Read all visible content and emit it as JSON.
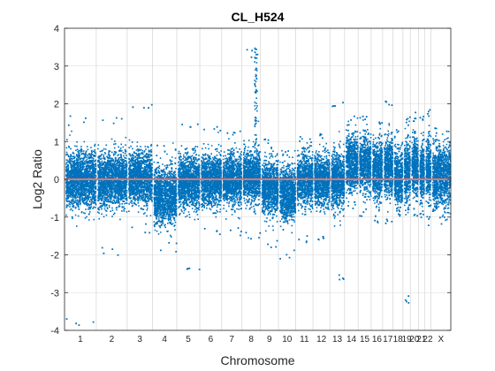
{
  "chart_data": {
    "type": "scatter",
    "title": "CL_H524",
    "xlabel": "Chromosome",
    "ylabel": "Log2 Ratio",
    "ylim": [
      -4,
      4
    ],
    "yticks": [
      "-4",
      "-3",
      "-2",
      "-1",
      "0",
      "1",
      "2",
      "3",
      "4"
    ],
    "grid": true,
    "colors": {
      "points": "#0072BD",
      "reference_line": "#E8736B",
      "grid": "#D9D9D9",
      "axis": "#262626"
    },
    "reference_line_y": 0,
    "chromosomes": [
      {
        "label": "1",
        "length": 249,
        "mean": 0.0,
        "spread": 0.36,
        "high": 1.7,
        "low": -3.9
      },
      {
        "label": "2",
        "length": 243,
        "mean": 0.0,
        "spread": 0.34,
        "high": 1.7,
        "low": -2.0
      },
      {
        "label": "3",
        "length": 198,
        "mean": 0.05,
        "spread": 0.34,
        "high": 2.05,
        "low": -1.4
      },
      {
        "label": "4",
        "length": 191,
        "mean": -0.4,
        "spread": 0.36,
        "high": 1.0,
        "low": -1.9
      },
      {
        "label": "5",
        "length": 181,
        "mean": -0.05,
        "spread": 0.34,
        "high": 1.5,
        "low": -2.4
      },
      {
        "label": "6",
        "length": 171,
        "mean": 0.0,
        "spread": 0.33,
        "high": 1.5,
        "low": -1.5
      },
      {
        "label": "7",
        "length": 159,
        "mean": 0.0,
        "spread": 0.33,
        "high": 1.3,
        "low": -1.5
      },
      {
        "label": "8",
        "length": 146,
        "mean": 0.1,
        "spread": 0.34,
        "high": 3.5,
        "low": -1.6
      },
      {
        "label": "9",
        "length": 141,
        "mean": -0.2,
        "spread": 0.34,
        "high": 1.1,
        "low": -1.8
      },
      {
        "label": "10",
        "length": 136,
        "mean": -0.35,
        "spread": 0.34,
        "high": 0.8,
        "low": -2.1
      },
      {
        "label": "11",
        "length": 135,
        "mean": 0.0,
        "spread": 0.33,
        "high": 1.2,
        "low": -1.7
      },
      {
        "label": "12",
        "length": 133,
        "mean": 0.0,
        "spread": 0.33,
        "high": 1.3,
        "low": -1.7
      },
      {
        "label": "13",
        "length": 115,
        "mean": 0.0,
        "spread": 0.36,
        "high": 2.1,
        "low": -2.7
      },
      {
        "label": "14",
        "length": 107,
        "mean": 0.45,
        "spread": 0.36,
        "high": 1.7,
        "low": -0.8
      },
      {
        "label": "15",
        "length": 102,
        "mean": 0.4,
        "spread": 0.36,
        "high": 1.7,
        "low": -1.0
      },
      {
        "label": "16",
        "length": 90,
        "mean": 0.25,
        "spread": 0.38,
        "high": 1.6,
        "low": -1.2
      },
      {
        "label": "17",
        "length": 81,
        "mean": 0.3,
        "spread": 0.38,
        "high": 2.2,
        "low": -1.2
      },
      {
        "label": "18",
        "length": 78,
        "mean": 0.05,
        "spread": 0.36,
        "high": 1.4,
        "low": -1.0
      },
      {
        "label": "19",
        "length": 59,
        "mean": 0.2,
        "spread": 0.4,
        "high": 1.7,
        "low": -3.3
      },
      {
        "label": "20",
        "length": 63,
        "mean": 0.35,
        "spread": 0.38,
        "high": 1.8,
        "low": -1.0
      },
      {
        "label": "21",
        "length": 48,
        "mean": 0.2,
        "spread": 0.38,
        "high": 1.8,
        "low": -1.0
      },
      {
        "label": "22",
        "length": 51,
        "mean": 0.25,
        "spread": 0.4,
        "high": 1.9,
        "low": -1.2
      },
      {
        "label": "X",
        "length": 155,
        "mean": 0.1,
        "spread": 0.4,
        "high": 1.4,
        "low": -1.2
      }
    ]
  }
}
